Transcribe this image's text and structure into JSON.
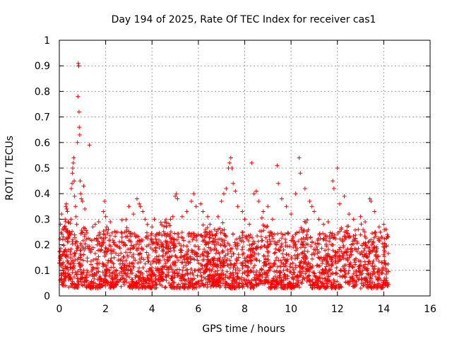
{
  "chart_data": {
    "type": "scatter",
    "title": "Day 194 of 2025, Rate Of TEC Index for receiver cas1",
    "xlabel": "GPS time / hours",
    "ylabel": "ROTI / TECUs",
    "xlim": [
      0,
      16
    ],
    "ylim": [
      0,
      1
    ],
    "xticks": [
      0,
      2,
      4,
      6,
      8,
      10,
      12,
      14,
      16
    ],
    "yticks": [
      0,
      0.1,
      0.2,
      0.3,
      0.4,
      0.5,
      0.6,
      0.7,
      0.8,
      0.9,
      1
    ],
    "ytick_labels": [
      "0",
      "0.1",
      "0.2",
      "0.3",
      "0.4",
      "0.5",
      "0.6",
      "0.7",
      "0.8",
      "0.9",
      "1"
    ],
    "grid": true,
    "marker": "+",
    "color": "#ff0000",
    "series": [
      {
        "name": "cas1 ROTI",
        "points": [
          [
            0.05,
            0.28
          ],
          [
            0.1,
            0.32
          ],
          [
            0.15,
            0.22
          ],
          [
            0.2,
            0.26
          ],
          [
            0.25,
            0.3
          ],
          [
            0.28,
            0.35
          ],
          [
            0.3,
            0.36
          ],
          [
            0.32,
            0.34
          ],
          [
            0.35,
            0.33
          ],
          [
            0.38,
            0.29
          ],
          [
            0.4,
            0.25
          ],
          [
            0.45,
            0.24
          ],
          [
            0.5,
            0.3
          ],
          [
            0.52,
            0.42
          ],
          [
            0.55,
            0.44
          ],
          [
            0.56,
            0.48
          ],
          [
            0.58,
            0.5
          ],
          [
            0.6,
            0.52
          ],
          [
            0.62,
            0.54
          ],
          [
            0.64,
            0.45
          ],
          [
            0.66,
            0.39
          ],
          [
            0.7,
            0.35
          ],
          [
            0.72,
            0.31
          ],
          [
            0.75,
            0.28
          ],
          [
            0.78,
            0.6
          ],
          [
            0.8,
            0.78
          ],
          [
            0.82,
            0.91
          ],
          [
            0.83,
            0.9
          ],
          [
            0.84,
            0.9
          ],
          [
            0.85,
            0.72
          ],
          [
            0.86,
            0.66
          ],
          [
            0.88,
            0.63
          ],
          [
            0.9,
            0.45
          ],
          [
            0.92,
            0.4
          ],
          [
            0.95,
            0.38
          ],
          [
            1.0,
            0.37
          ],
          [
            1.05,
            0.43
          ],
          [
            1.1,
            0.34
          ],
          [
            1.3,
            0.59
          ],
          [
            1.45,
            0.27
          ],
          [
            1.55,
            0.28
          ],
          [
            1.7,
            0.29
          ],
          [
            1.9,
            0.33
          ],
          [
            1.95,
            0.37
          ],
          [
            2.0,
            0.31
          ],
          [
            2.05,
            0.27
          ],
          [
            2.2,
            0.29
          ],
          [
            2.5,
            0.25
          ],
          [
            2.7,
            0.23
          ],
          [
            3.0,
            0.35
          ],
          [
            3.2,
            0.32
          ],
          [
            3.35,
            0.38
          ],
          [
            3.45,
            0.36
          ],
          [
            3.5,
            0.35
          ],
          [
            3.6,
            0.33
          ],
          [
            3.7,
            0.3
          ],
          [
            3.8,
            0.28
          ],
          [
            4.0,
            0.27
          ],
          [
            4.1,
            0.3
          ],
          [
            4.2,
            0.24
          ],
          [
            4.4,
            0.2
          ],
          [
            4.6,
            0.19
          ],
          [
            4.8,
            0.3
          ],
          [
            4.9,
            0.31
          ],
          [
            5.0,
            0.39
          ],
          [
            5.05,
            0.4
          ],
          [
            5.1,
            0.38
          ],
          [
            5.3,
            0.31
          ],
          [
            5.5,
            0.33
          ],
          [
            5.7,
            0.37
          ],
          [
            5.8,
            0.4
          ],
          [
            5.9,
            0.35
          ],
          [
            6.1,
            0.36
          ],
          [
            6.2,
            0.33
          ],
          [
            6.4,
            0.31
          ],
          [
            6.5,
            0.28
          ],
          [
            6.7,
            0.26
          ],
          [
            6.85,
            0.31
          ],
          [
            7.0,
            0.37
          ],
          [
            7.1,
            0.4
          ],
          [
            7.2,
            0.42
          ],
          [
            7.3,
            0.5
          ],
          [
            7.35,
            0.52
          ],
          [
            7.4,
            0.54
          ],
          [
            7.45,
            0.5
          ],
          [
            7.5,
            0.44
          ],
          [
            7.6,
            0.41
          ],
          [
            7.7,
            0.35
          ],
          [
            7.9,
            0.33
          ],
          [
            8.0,
            0.3
          ],
          [
            8.2,
            0.28
          ],
          [
            8.3,
            0.52
          ],
          [
            8.4,
            0.4
          ],
          [
            8.5,
            0.41
          ],
          [
            8.6,
            0.37
          ],
          [
            8.8,
            0.33
          ],
          [
            9.0,
            0.35
          ],
          [
            9.2,
            0.3
          ],
          [
            9.4,
            0.51
          ],
          [
            9.45,
            0.44
          ],
          [
            9.6,
            0.38
          ],
          [
            9.8,
            0.35
          ],
          [
            10.0,
            0.32
          ],
          [
            10.2,
            0.4
          ],
          [
            10.35,
            0.54
          ],
          [
            10.4,
            0.48
          ],
          [
            10.6,
            0.42
          ],
          [
            10.8,
            0.37
          ],
          [
            10.9,
            0.35
          ],
          [
            11.0,
            0.33
          ],
          [
            11.2,
            0.3
          ],
          [
            11.4,
            0.28
          ],
          [
            11.6,
            0.29
          ],
          [
            11.8,
            0.45
          ],
          [
            11.85,
            0.42
          ],
          [
            12.0,
            0.5
          ],
          [
            12.1,
            0.36
          ],
          [
            12.3,
            0.39
          ],
          [
            12.5,
            0.32
          ],
          [
            12.7,
            0.3
          ],
          [
            12.9,
            0.26
          ],
          [
            13.0,
            0.31
          ],
          [
            13.2,
            0.29
          ],
          [
            13.4,
            0.38
          ],
          [
            13.45,
            0.37
          ],
          [
            13.6,
            0.33
          ],
          [
            13.8,
            0.27
          ],
          [
            14.0,
            0.28
          ],
          [
            14.1,
            0.26
          ],
          [
            14.15,
            0.24
          ]
        ],
        "dense_band": {
          "x_range": [
            0,
            14.2
          ],
          "typical_range": [
            0.03,
            0.25
          ],
          "note": "thousands of overlapping samples forming a continuous band"
        }
      }
    ]
  }
}
